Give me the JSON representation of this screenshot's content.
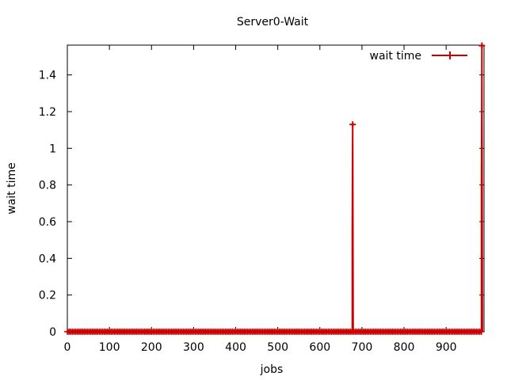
{
  "chart_data": {
    "type": "line",
    "title": "Server0-Wait",
    "xlabel": "jobs",
    "ylabel": "wait time",
    "xlim": [
      0,
      990
    ],
    "ylim": [
      0,
      1.5625
    ],
    "x_ticks": [
      0,
      100,
      200,
      300,
      400,
      500,
      600,
      700,
      800,
      900
    ],
    "y_ticks": [
      0,
      0.2,
      0.4,
      0.6,
      0.8,
      1,
      1.2,
      1.4
    ],
    "x_tick_labels": [
      "0",
      "100",
      "200",
      "300",
      "400",
      "500",
      "600",
      "700",
      "800",
      "900"
    ],
    "y_tick_labels": [
      "0",
      "0.2",
      "0.4",
      "0.6",
      "0.8",
      "1",
      "1.2",
      "1.4"
    ],
    "grid": false,
    "legend_position": "top-right",
    "series": [
      {
        "name": "wait time",
        "color": "#cc0000",
        "marker": "plus",
        "baseline": {
          "x_start": 0,
          "x_end": 985,
          "y": 0
        },
        "points": [
          {
            "x": 677,
            "y": 0
          },
          {
            "x": 677,
            "y": 0.56
          },
          {
            "x": 678,
            "y": 1.13
          },
          {
            "x": 679,
            "y": 0
          },
          {
            "x": 984,
            "y": 0
          },
          {
            "x": 984,
            "y": 0.78
          },
          {
            "x": 985,
            "y": 1.56
          },
          {
            "x": 986,
            "y": 0
          }
        ],
        "spike_markers": [
          {
            "x": 678,
            "y": 1.13
          },
          {
            "x": 985,
            "y": 1.56
          }
        ]
      }
    ]
  }
}
